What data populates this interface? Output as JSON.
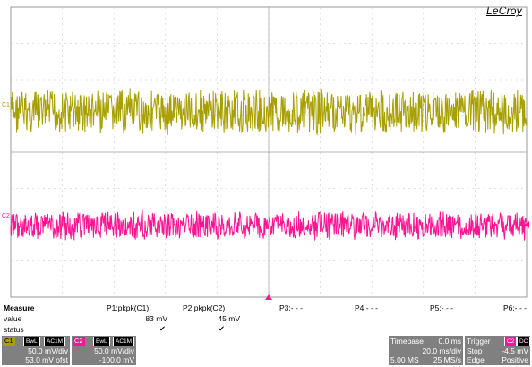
{
  "brand": "LeCroy",
  "channels": {
    "c1": {
      "marker": "C1",
      "color": "#a8a000"
    },
    "c2": {
      "marker": "C2",
      "color": "#ff1493"
    }
  },
  "measure": {
    "header": "Measure",
    "row_labels": [
      "value",
      "status"
    ],
    "params": [
      {
        "name": "P1:pkpk(C1)",
        "value": "83 mV",
        "status": "✔"
      },
      {
        "name": "P2:pkpk(C2)",
        "value": "45 mV",
        "status": "✔"
      },
      {
        "name": "P3:- - -",
        "value": "",
        "status": ""
      },
      {
        "name": "P4:- - -",
        "value": "",
        "status": ""
      },
      {
        "name": "P5:- - -",
        "value": "",
        "status": ""
      },
      {
        "name": "P6:- - -",
        "value": "",
        "status": ""
      }
    ]
  },
  "c1_box": {
    "tag": "C1",
    "bwl": "BwL",
    "coupling": "AC1M",
    "vdiv": "50.0 mV/div",
    "offset": "53.0 mV ofst"
  },
  "c2_box": {
    "tag": "C2",
    "bwl": "BwL",
    "coupling": "AC1M",
    "vdiv": "50.0 mV/div",
    "offset": "-100.0 mV"
  },
  "timebase": {
    "label": "Timebase",
    "delay": "0.0 ms",
    "tdiv": "20.0 ms/div",
    "samples": "5.00 MS",
    "rate": "25 MS/s"
  },
  "trigger": {
    "label": "Trigger",
    "source": "C2",
    "coupling": "DC",
    "mode": "Stop",
    "level": "-4.5 mV",
    "type": "Edge",
    "slope": "Positive"
  }
}
